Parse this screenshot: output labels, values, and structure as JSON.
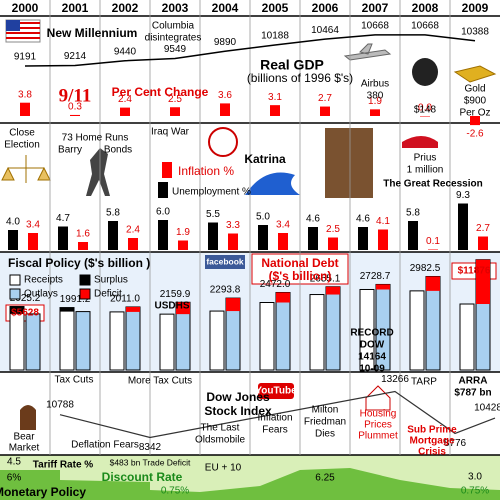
{
  "chart_data": [
    {
      "type": "line",
      "title": "Real GDP",
      "subtitle": "(billions of 1996 $'s)",
      "categories": [
        "2000",
        "2001",
        "2002",
        "2003",
        "2004",
        "2005",
        "2006",
        "2007",
        "2008",
        "2009"
      ],
      "values": [
        9191,
        9214,
        9440,
        9549,
        9890,
        10188,
        10464,
        10668,
        10668,
        10388
      ],
      "color": "#000000",
      "ylim": [
        9000,
        10900
      ]
    },
    {
      "type": "bar",
      "title": "Per Cent Change",
      "values": [
        3.8,
        0.3,
        2.4,
        2.5,
        3.6,
        3.1,
        2.7,
        1.9,
        0.0,
        -2.6
      ],
      "value_labels": [
        "3.8",
        "0.3",
        "2.4",
        "2.5",
        "3.6",
        "3.1",
        "2.7",
        "1.9",
        "0.0",
        "-2.6"
      ],
      "color": "#ff0000",
      "ylim": [
        -4,
        4
      ]
    },
    {
      "type": "grouped-bar",
      "ylim": [
        0,
        10
      ],
      "series": [
        {
          "name": "Unemployment %",
          "color": "#000000",
          "values": [
            4.0,
            4.7,
            5.8,
            6.0,
            5.5,
            5.0,
            4.6,
            4.6,
            5.8,
            9.3
          ],
          "value_labels": [
            "4.0",
            "4.7",
            "5.8",
            "6.0",
            "5.5",
            "5.0",
            "4.6",
            "4.6",
            "5.8",
            "9.3"
          ]
        },
        {
          "name": "Inflation %",
          "color": "#ff0000",
          "values": [
            3.4,
            1.6,
            2.4,
            1.9,
            3.3,
            3.4,
            2.5,
            4.1,
            0.1,
            2.7
          ],
          "value_labels": [
            "3.4",
            "1.6",
            "2.4",
            "1.9",
            "3.3",
            "3.4",
            "2.5",
            "4.1",
            "0.1",
            "2.7"
          ]
        }
      ]
    },
    {
      "type": "fiscal-bar",
      "title": "Fiscal Policy ($'s billion )",
      "ylim": [
        0,
        3700
      ],
      "series": [
        {
          "name": "Receipts",
          "color": "#ffffff",
          "values": [
            2025.2,
            1991.2,
            1853,
            1782,
            1880,
            2153,
            2407,
            2568,
            2524,
            2105
          ],
          "value_labels": [
            "2025.2",
            "1991.2",
            null,
            null,
            null,
            null,
            null,
            null,
            null,
            null
          ]
        },
        {
          "name": "Outlays",
          "color": "#a9d0f0",
          "values": [
            1789,
            1863,
            2011.0,
            2159.9,
            2293.8,
            2472.0,
            2655.1,
            2728.7,
            2982.5,
            3518
          ],
          "value_labels": [
            null,
            null,
            "2011.0",
            "2159.9",
            "2293.8",
            "2472.0",
            "2655.1",
            "2728.7",
            "2982.5",
            null
          ]
        }
      ],
      "balance": [
        {
          "name": "Surplus",
          "color": "#000000"
        },
        {
          "name": "Deficit",
          "color": "#ff0000"
        }
      ]
    },
    {
      "type": "line",
      "title": [
        "Dow Jones",
        "Stock Index"
      ],
      "x": [
        2001.2,
        2003.0,
        2007.9,
        2009.1,
        2009.9
      ],
      "values": [
        10788,
        8342,
        13266,
        8776,
        10428
      ],
      "xlim": [
        2000,
        2010
      ],
      "ylim": [
        7000,
        14500
      ],
      "color": "#333333"
    }
  ],
  "events": [
    [
      "New Millennium"
    ],
    [
      "Columbia",
      "disintegrates"
    ],
    [
      "9/11"
    ],
    [
      "Airbus",
      "380"
    ],
    [
      "$148"
    ],
    [
      "Gold",
      "$900",
      "Per Oz"
    ],
    [
      "Close",
      "Election"
    ],
    [
      "73 Home Runs"
    ],
    [
      "Barry"
    ],
    [
      "Bonds"
    ],
    [
      "Iraq War"
    ],
    [
      "Katrina"
    ],
    [
      "Prius",
      "1 million"
    ],
    [
      "The Great Recession"
    ],
    [
      "Tax Cuts"
    ],
    [
      "More Tax Cuts"
    ],
    [
      "USDHS"
    ],
    [
      "facebook"
    ],
    [
      "TARP"
    ],
    [
      "ARRA",
      "$787 bn"
    ],
    [
      "Bear",
      "Market"
    ],
    [
      "Deflation Fears"
    ],
    [
      "The Last",
      "Oldsmobile"
    ],
    [
      "Inflation",
      "Fears"
    ],
    [
      "Milton",
      "Friedman",
      "Dies"
    ],
    [
      "Housing",
      "Prices",
      "Plummet"
    ],
    [
      "Sub Prime",
      "Mortgage",
      "Crisis"
    ],
    [
      "YouTube"
    ],
    [
      "RECORD",
      "DOW",
      "14164",
      "10-09"
    ],
    [
      "Tariff Rate %"
    ],
    [
      "4.5"
    ],
    [
      "6%"
    ],
    [
      "Monetary Policy"
    ],
    [
      "$483 bn Trade Deficit"
    ],
    [
      "Discount Rate"
    ],
    [
      "0.75%"
    ],
    [
      "EU + 10"
    ],
    [
      "6.25"
    ],
    [
      "3.0"
    ],
    [
      "0.75%"
    ],
    [
      "National Debt",
      "($'s billion)"
    ],
    [
      "$5628"
    ],
    [
      "$11876"
    ]
  ]
}
